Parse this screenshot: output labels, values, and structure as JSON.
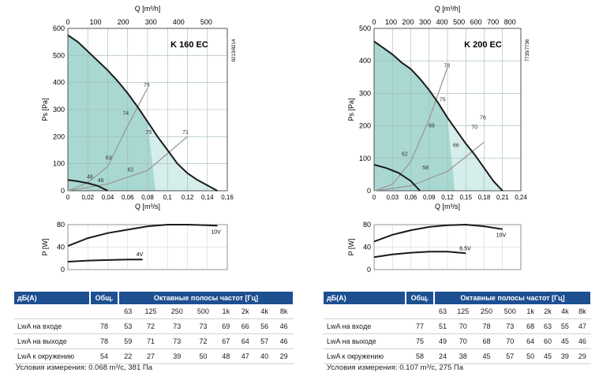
{
  "charts": [
    {
      "model": "K 160 EC",
      "side_code": "8213/8214",
      "top_axis_label": "Q [m³/h]",
      "top_ticks": [
        "0",
        "100",
        "200",
        "300",
        "400",
        "500"
      ],
      "bottom_axis_label": "Q [m³/s]",
      "bottom_ticks": [
        "0",
        "0,02",
        "0,04",
        "0,06",
        "0,08",
        "0,1",
        "0,12",
        "0,14",
        "0,16"
      ],
      "y_label": "Ps [Pa]",
      "y_ticks": [
        "0",
        "100",
        "200",
        "300",
        "400",
        "500",
        "600"
      ],
      "power_y_label": "P [W]",
      "power_y_ticks": [
        "0",
        "40",
        "80"
      ]
    },
    {
      "model": "K 200 EC",
      "side_code": "7735/7736",
      "top_axis_label": "Q [m³/h]",
      "top_ticks": [
        "0",
        "100",
        "200",
        "300",
        "400",
        "500",
        "600",
        "700",
        "800"
      ],
      "bottom_axis_label": "Q [m³/s]",
      "bottom_ticks": [
        "0",
        "0,03",
        "0,06",
        "0,09",
        "0,12",
        "0,15",
        "0,18",
        "0,21",
        "0,24"
      ],
      "y_label": "Ps [Pa]",
      "y_ticks": [
        "0",
        "100",
        "200",
        "300",
        "400",
        "500"
      ],
      "power_y_label": "P [W]",
      "power_y_ticks": [
        "0",
        "40",
        "80"
      ]
    }
  ],
  "chart_data": [
    {
      "type": "line",
      "title": "K 160 EC",
      "xlabel": "Q [m³/s]",
      "ylabel": "Ps [Pa]",
      "xlim": [
        0,
        0.16
      ],
      "ylim": [
        0,
        600
      ],
      "series": [
        {
          "name": "10V",
          "x": [
            0,
            0.01,
            0.02,
            0.03,
            0.04,
            0.05,
            0.06,
            0.07,
            0.08,
            0.09,
            0.1,
            0.11,
            0.12,
            0.13,
            0.14,
            0.15
          ],
          "y": [
            575,
            550,
            515,
            480,
            445,
            405,
            360,
            310,
            255,
            200,
            150,
            100,
            65,
            40,
            20,
            0
          ]
        },
        {
          "name": "4V",
          "x": [
            0,
            0.01,
            0.02,
            0.03,
            0.04
          ],
          "y": [
            40,
            35,
            28,
            18,
            0
          ]
        }
      ],
      "system_curves": [
        {
          "x": [
            0,
            0.02,
            0.04,
            0.06,
            0.08
          ],
          "y": [
            0,
            30,
            90,
            240,
            380
          ]
        },
        {
          "x": [
            0,
            0.04,
            0.08,
            0.12
          ],
          "y": [
            0,
            25,
            75,
            200
          ]
        }
      ],
      "iso_labels": [
        {
          "text": "79",
          "x": 0.079,
          "y": 385
        },
        {
          "text": "74",
          "x": 0.058,
          "y": 280
        },
        {
          "text": "75",
          "x": 0.081,
          "y": 210
        },
        {
          "text": "71",
          "x": 0.118,
          "y": 210
        },
        {
          "text": "63",
          "x": 0.041,
          "y": 115
        },
        {
          "text": "62",
          "x": 0.063,
          "y": 72
        },
        {
          "text": "48",
          "x": 0.022,
          "y": 45
        },
        {
          "text": "46",
          "x": 0.033,
          "y": 32
        }
      ],
      "power": {
        "ylim": [
          0,
          80
        ],
        "series": [
          {
            "name": "10V",
            "x": [
              0,
              0.02,
              0.04,
              0.06,
              0.08,
              0.1,
              0.12,
              0.14,
              0.15
            ],
            "y": [
              42,
              56,
              65,
              71,
              77,
              80,
              80,
              79,
              78
            ]
          },
          {
            "name": "4V",
            "x": [
              0,
              0.02,
              0.04,
              0.06,
              0.075
            ],
            "y": [
              14,
              16,
              17,
              18,
              18
            ]
          }
        ]
      }
    },
    {
      "type": "line",
      "title": "K 200 EC",
      "xlabel": "Q [m³/s]",
      "ylabel": "Ps [Pa]",
      "xlim": [
        0,
        0.24
      ],
      "ylim": [
        0,
        500
      ],
      "series": [
        {
          "name": "10V",
          "x": [
            0,
            0.015,
            0.03,
            0.045,
            0.06,
            0.075,
            0.09,
            0.105,
            0.12,
            0.135,
            0.15,
            0.165,
            0.18,
            0.195,
            0.21
          ],
          "y": [
            460,
            440,
            420,
            395,
            375,
            345,
            310,
            270,
            225,
            185,
            145,
            110,
            70,
            30,
            0
          ]
        },
        {
          "name": "6,5V",
          "x": [
            0,
            0.02,
            0.04,
            0.06,
            0.075
          ],
          "y": [
            80,
            70,
            55,
            30,
            0
          ]
        }
      ],
      "system_curves": [
        {
          "x": [
            0,
            0.03,
            0.06,
            0.09,
            0.12
          ],
          "y": [
            0,
            20,
            90,
            220,
            380
          ]
        },
        {
          "x": [
            0,
            0.06,
            0.12,
            0.18
          ],
          "y": [
            0,
            15,
            60,
            150
          ]
        }
      ],
      "iso_labels": [
        {
          "text": "78",
          "x": 0.119,
          "y": 380
        },
        {
          "text": "75",
          "x": 0.112,
          "y": 275
        },
        {
          "text": "69",
          "x": 0.094,
          "y": 195
        },
        {
          "text": "62",
          "x": 0.05,
          "y": 108
        },
        {
          "text": "58",
          "x": 0.084,
          "y": 65
        },
        {
          "text": "76",
          "x": 0.178,
          "y": 220
        },
        {
          "text": "70",
          "x": 0.164,
          "y": 190
        },
        {
          "text": "66",
          "x": 0.134,
          "y": 135
        }
      ],
      "power": {
        "ylim": [
          0,
          80
        ],
        "series": [
          {
            "name": "10V",
            "x": [
              0,
              0.03,
              0.06,
              0.09,
              0.12,
              0.15,
              0.18,
              0.21
            ],
            "y": [
              50,
              62,
              70,
              76,
              79,
              80,
              77,
              72
            ]
          },
          {
            "name": "6,5V",
            "x": [
              0,
              0.03,
              0.06,
              0.09,
              0.12,
              0.15
            ],
            "y": [
              22,
              27,
              30,
              32,
              32,
              29
            ]
          }
        ]
      }
    }
  ],
  "tables": [
    {
      "header": {
        "col1": "дБ(А)",
        "col2": "Общ.",
        "col3": "Октавные полосы частот [Гц]"
      },
      "bands": [
        "63",
        "125",
        "250",
        "500",
        "1k",
        "2k",
        "4k",
        "8k"
      ],
      "rows": [
        {
          "label": "LwA на входе",
          "total": "78",
          "values": [
            "53",
            "72",
            "73",
            "73",
            "69",
            "66",
            "56",
            "46"
          ]
        },
        {
          "label": "LwA на выходе",
          "total": "78",
          "values": [
            "59",
            "71",
            "73",
            "72",
            "67",
            "64",
            "57",
            "46"
          ]
        },
        {
          "label": "LwA к окружению",
          "total": "54",
          "values": [
            "22",
            "27",
            "39",
            "50",
            "48",
            "47",
            "40",
            "29"
          ]
        }
      ],
      "conditions": "Условия измерения: 0.068 m³/c, 381 Па"
    },
    {
      "header": {
        "col1": "дБ(А)",
        "col2": "Общ.",
        "col3": "Октавные полосы частот [Гц]"
      },
      "bands": [
        "63",
        "125",
        "250",
        "500",
        "1k",
        "2k",
        "4k",
        "8k"
      ],
      "rows": [
        {
          "label": "LwA на входе",
          "total": "77",
          "values": [
            "51",
            "70",
            "78",
            "73",
            "68",
            "63",
            "55",
            "47"
          ]
        },
        {
          "label": "LwA на выходе",
          "total": "75",
          "values": [
            "49",
            "70",
            "68",
            "70",
            "64",
            "60",
            "45",
            "46"
          ]
        },
        {
          "label": "LwA к окружению",
          "total": "58",
          "values": [
            "24",
            "38",
            "45",
            "57",
            "50",
            "45",
            "39",
            "29"
          ]
        }
      ],
      "conditions": "Условия измерения: 0.107 m³/c, 275 Па"
    }
  ],
  "colors": {
    "band_dark": "#a9d8d3",
    "band_light": "#d6eeeb",
    "curve": "#1a1a1a",
    "system": "#9a9a9a",
    "header": "#1d4f91"
  }
}
